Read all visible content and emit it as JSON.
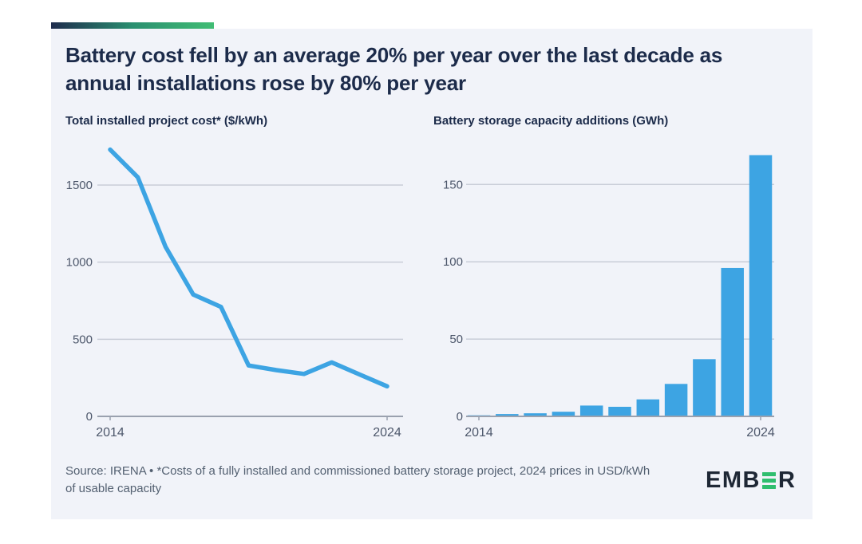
{
  "header": {
    "title_lines": [
      "Battery cost fell by an average 20% per year over the last decade as",
      "annual installations rose by 80% per year"
    ]
  },
  "chart_data": [
    {
      "type": "line",
      "title": "Total installed project cost* ($/kWh)",
      "x": [
        2014,
        2015,
        2016,
        2017,
        2018,
        2019,
        2020,
        2021,
        2022,
        2023,
        2024
      ],
      "values": [
        1730,
        1550,
        1100,
        790,
        710,
        330,
        300,
        275,
        350,
        272,
        195
      ],
      "ylim": [
        0,
        1800
      ],
      "yticks": [
        0,
        500,
        1000,
        1500
      ],
      "xtick_labels": [
        "2014",
        "2024"
      ],
      "grid": true,
      "legend": "none",
      "color": "#3da4e3"
    },
    {
      "type": "bar",
      "title": "Battery storage capacity additions (GWh)",
      "x": [
        2014,
        2015,
        2016,
        2017,
        2018,
        2019,
        2020,
        2021,
        2022,
        2023,
        2024
      ],
      "values": [
        0.7,
        1.5,
        2,
        3,
        7,
        6.2,
        11,
        21,
        37,
        96,
        169
      ],
      "ylim": [
        0,
        180
      ],
      "yticks": [
        0,
        50,
        100,
        150
      ],
      "xtick_labels": [
        "2014",
        "2024"
      ],
      "grid": true,
      "legend": "none",
      "color": "#3da4e3"
    }
  ],
  "footer": {
    "source": "Source: IRENA • *Costs of a fully installed and commissioned battery storage project, 2024 prices in USD/kWh of usable capacity",
    "logo_left": "EMB",
    "logo_right": "R"
  },
  "colors": {
    "accent_blue": "#3da4e3",
    "title_navy": "#1c2b4a",
    "axis_text": "#4d576b",
    "grid_line": "#c9cdd8",
    "axis_line": "#9aa1af",
    "card_bg": "#f1f3f9",
    "page_bg": "#ffffff",
    "logo_navy": "#1e2735",
    "logo_green": "#2fbe6f",
    "gradient_start": "#1f2c4d",
    "gradient_end": "#41bd74"
  }
}
